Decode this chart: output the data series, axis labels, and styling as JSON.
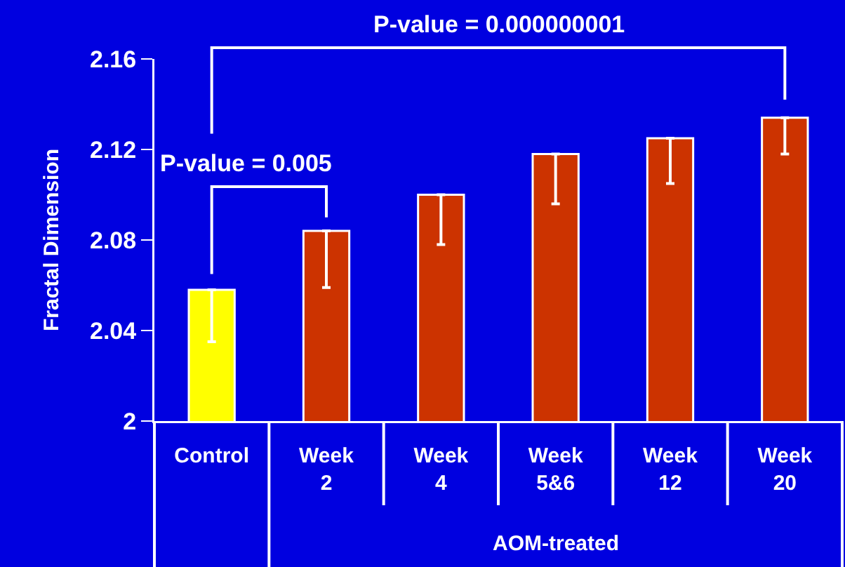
{
  "chart_data": {
    "type": "bar",
    "ylabel": "Fractal Dimension",
    "categories": [
      "Control",
      "Week 2",
      "Week 4",
      "Week 5&6",
      "Week 12",
      "Week 20"
    ],
    "values": [
      2.058,
      2.084,
      2.1,
      2.118,
      2.125,
      2.134
    ],
    "colors": [
      "#ffff00",
      "#cc3300",
      "#cc3300",
      "#cc3300",
      "#cc3300",
      "#cc3300"
    ],
    "errors": [
      [
        2.035,
        2.058
      ],
      [
        2.059,
        2.084
      ],
      [
        2.078,
        2.1
      ],
      [
        2.096,
        2.118
      ],
      [
        2.105,
        2.125
      ],
      [
        2.118,
        2.134
      ]
    ],
    "ylim": [
      2,
      2.16
    ],
    "yticks": [
      2,
      2.04,
      2.08,
      2.12,
      2.16
    ],
    "annotations": [
      "P-value = 0.000000001",
      "P-value = 0.005",
      "AOM-treated"
    ]
  }
}
